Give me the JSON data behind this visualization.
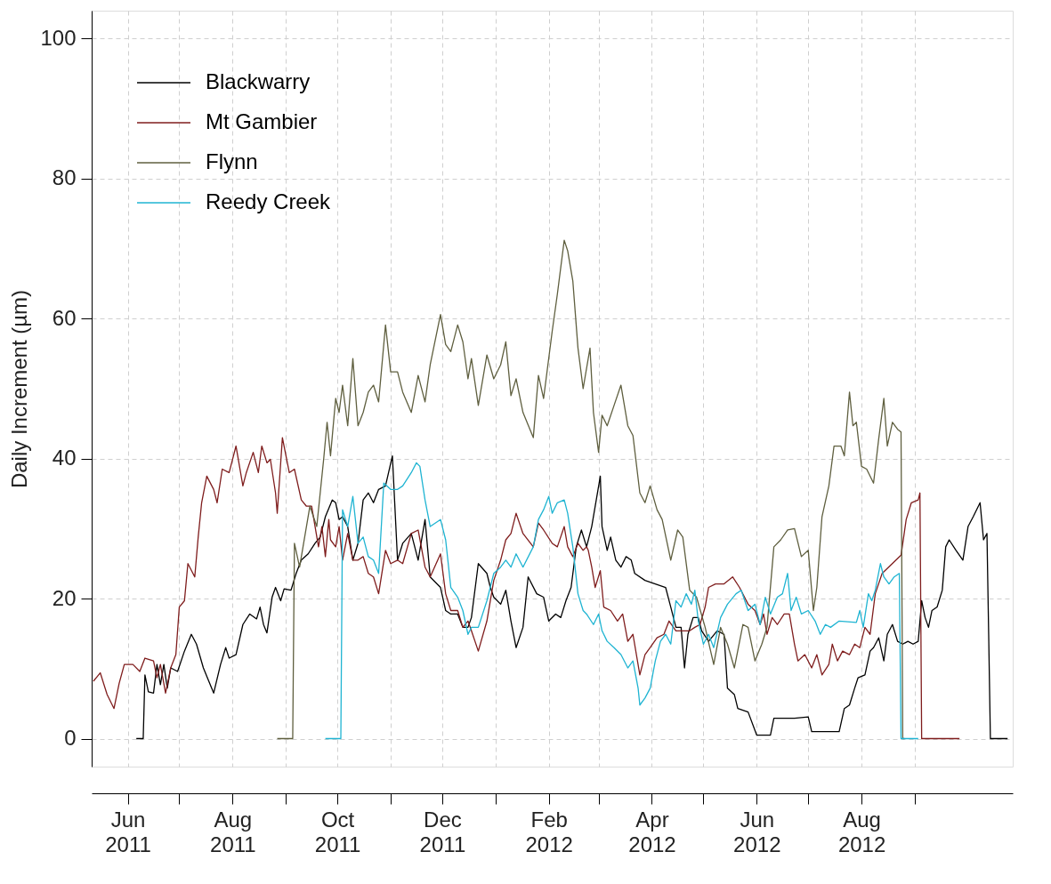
{
  "chart_data": {
    "type": "line",
    "ylabel": "Daily Increment (µm)",
    "xlim": [
      "2011-05-11",
      "2012-10-28"
    ],
    "ylim": [
      -4,
      104
    ],
    "yticks": [
      0,
      20,
      40,
      60,
      80,
      100
    ],
    "xticks": [
      {
        "value": "2011-06-01",
        "label": "Jun\n2011"
      },
      {
        "value": "2011-07-01",
        "label": null
      },
      {
        "value": "2011-08-01",
        "label": "Aug\n2011"
      },
      {
        "value": "2011-09-01",
        "label": null
      },
      {
        "value": "2011-10-01",
        "label": "Oct\n2011"
      },
      {
        "value": "2011-11-01",
        "label": null
      },
      {
        "value": "2011-12-01",
        "label": "Dec\n2011"
      },
      {
        "value": "2012-01-01",
        "label": null
      },
      {
        "value": "2012-02-01",
        "label": "Feb\n2012"
      },
      {
        "value": "2012-03-01",
        "label": null
      },
      {
        "value": "2012-04-01",
        "label": "Apr\n2012"
      },
      {
        "value": "2012-05-01",
        "label": null
      },
      {
        "value": "2012-06-01",
        "label": "Jun\n2012"
      },
      {
        "value": "2012-07-01",
        "label": null
      },
      {
        "value": "2012-08-01",
        "label": "Aug\n2012"
      },
      {
        "value": "2012-09-01",
        "label": null
      }
    ],
    "grid": true,
    "legend": "top left",
    "line_style": "solid",
    "series": [
      {
        "name": "Blackwarry",
        "color": "#000000",
        "x": [
          "2011-06-06",
          "2011-06-10",
          "2011-06-11",
          "2011-06-13",
          "2011-06-16",
          "2011-06-18",
          "2011-06-20",
          "2011-06-22",
          "2011-06-24",
          "2011-06-26",
          "2011-06-30",
          "2011-07-04",
          "2011-07-08",
          "2011-07-11",
          "2011-07-15",
          "2011-07-21",
          "2011-07-25",
          "2011-07-28",
          "2011-07-30",
          "2011-08-03",
          "2011-08-07",
          "2011-08-11",
          "2011-08-15",
          "2011-08-17",
          "2011-08-19",
          "2011-08-21",
          "2011-08-24",
          "2011-08-26",
          "2011-08-29",
          "2011-08-31",
          "2011-09-04",
          "2011-09-07",
          "2011-09-10",
          "2011-09-14",
          "2011-09-18",
          "2011-09-21",
          "2011-09-24",
          "2011-09-28",
          "2011-09-30",
          "2011-10-02",
          "2011-10-04",
          "2011-10-07",
          "2011-10-10",
          "2011-10-13",
          "2011-10-16",
          "2011-10-19",
          "2011-10-22",
          "2011-10-25",
          "2011-10-29",
          "2011-11-02",
          "2011-11-05",
          "2011-11-08",
          "2011-11-13",
          "2011-11-17",
          "2011-11-21",
          "2011-11-24",
          "2011-11-30",
          "2011-12-03",
          "2011-12-06",
          "2011-12-10",
          "2011-12-13",
          "2011-12-16",
          "2011-12-18",
          "2011-12-22",
          "2011-12-27",
          "2011-12-29",
          "2011-12-31",
          "2012-01-04",
          "2012-01-07",
          "2012-01-10",
          "2012-01-13",
          "2012-01-17",
          "2012-01-20",
          "2012-01-25",
          "2012-01-29",
          "2012-02-01",
          "2012-02-05",
          "2012-02-08",
          "2012-02-11",
          "2012-02-14",
          "2012-02-17",
          "2012-02-20",
          "2012-02-23",
          "2012-02-26",
          "2012-03-02",
          "2012-03-03",
          "2012-03-06",
          "2012-03-08",
          "2012-03-11",
          "2012-03-14",
          "2012-03-17",
          "2012-03-20",
          "2012-03-22",
          "2012-03-28",
          "2012-04-03",
          "2012-04-09",
          "2012-04-12",
          "2012-04-15",
          "2012-04-18",
          "2012-04-20",
          "2012-04-22",
          "2012-04-25",
          "2012-04-28",
          "2012-04-30",
          "2012-05-04",
          "2012-05-09",
          "2012-05-13",
          "2012-05-15",
          "2012-05-19",
          "2012-05-21",
          "2012-05-27",
          "2012-06-01",
          "2012-06-09",
          "2012-06-11",
          "2012-06-23",
          "2012-07-01",
          "2012-07-03",
          "2012-07-14",
          "2012-07-19",
          "2012-07-22",
          "2012-07-25",
          "2012-07-28",
          "2012-07-30",
          "2012-08-03",
          "2012-08-06",
          "2012-08-08",
          "2012-08-11",
          "2012-08-14",
          "2012-08-16",
          "2012-08-19",
          "2012-08-22",
          "2012-08-25",
          "2012-08-28",
          "2012-08-31",
          "2012-09-03",
          "2012-09-05",
          "2012-09-07",
          "2012-09-09",
          "2012-09-11",
          "2012-09-14",
          "2012-09-17",
          "2012-09-19",
          "2012-09-21",
          "2012-09-25",
          "2012-09-29",
          "2012-10-02",
          "2012-10-05",
          "2012-10-09",
          "2012-10-11",
          "2012-10-13",
          "2012-10-14",
          "2012-10-15",
          "2012-10-25"
        ],
        "values": [
          0,
          0,
          9.1,
          6.7,
          6.5,
          10.6,
          7.7,
          10.6,
          7.2,
          10.1,
          9.6,
          12.5,
          14.9,
          13.5,
          10.1,
          6.5,
          10.6,
          13,
          11.5,
          12,
          16.3,
          17.8,
          17.1,
          18.8,
          16.3,
          15.1,
          20.2,
          21.6,
          19.7,
          21.4,
          21.2,
          23.6,
          25.5,
          26.4,
          27.9,
          28.8,
          31.7,
          34.1,
          33.7,
          31.3,
          31.7,
          30.3,
          25.5,
          27.9,
          34.1,
          35.1,
          33.7,
          35.6,
          36.1,
          40.4,
          25.5,
          27.9,
          29.3,
          25.5,
          31.3,
          23.1,
          21.6,
          18.3,
          17.8,
          17.8,
          15.9,
          15.9,
          17.3,
          25,
          23.6,
          21.6,
          20.2,
          19.2,
          21.2,
          16.8,
          13,
          15.9,
          23.1,
          20.7,
          20.2,
          16.8,
          17.8,
          17.3,
          19.7,
          21.6,
          27.4,
          29.8,
          27.4,
          30.3,
          37.5,
          30.3,
          26.9,
          28.8,
          25.5,
          24.5,
          26,
          25.5,
          23.6,
          22.6,
          22.1,
          21.6,
          18.8,
          15.9,
          15.9,
          10.1,
          14.9,
          17.3,
          17.3,
          15.4,
          13.9,
          15.4,
          14.9,
          7.2,
          6.3,
          4.3,
          3.8,
          0.5,
          0.5,
          2.9,
          2.9,
          3.1,
          1,
          1,
          1,
          4.3,
          4.8,
          7.2,
          8.7,
          9.1,
          12.5,
          13,
          14.4,
          11.1,
          14.9,
          16.3,
          13.9,
          13.5,
          13.9,
          13.5,
          13.9,
          19.7,
          17.3,
          15.9,
          18.3,
          18.8,
          21.2,
          27.4,
          28.4,
          26.9,
          25.5,
          30.3,
          31.7,
          33.7,
          28.4,
          29.3,
          14.9,
          0,
          0
        ]
      },
      {
        "name": "Mt Gambier",
        "color": "#7f1d1d",
        "x": [
          "2011-05-12",
          "2011-05-16",
          "2011-05-20",
          "2011-05-24",
          "2011-05-27",
          "2011-05-30",
          "2011-06-04",
          "2011-06-08",
          "2011-06-11",
          "2011-06-16",
          "2011-06-18",
          "2011-06-20",
          "2011-06-23",
          "2011-06-26",
          "2011-06-29",
          "2011-07-01",
          "2011-07-04",
          "2011-07-06",
          "2011-07-10",
          "2011-07-12",
          "2011-07-14",
          "2011-07-17",
          "2011-07-21",
          "2011-07-23",
          "2011-07-26",
          "2011-07-30",
          "2011-08-03",
          "2011-08-07",
          "2011-08-09",
          "2011-08-13",
          "2011-08-16",
          "2011-08-18",
          "2011-08-21",
          "2011-08-23",
          "2011-08-26",
          "2011-08-27",
          "2011-08-30",
          "2011-09-03",
          "2011-09-06",
          "2011-09-10",
          "2011-09-13",
          "2011-09-16",
          "2011-09-20",
          "2011-09-22",
          "2011-09-24",
          "2011-09-26",
          "2011-09-27",
          "2011-09-30",
          "2011-10-02",
          "2011-10-04",
          "2011-10-07",
          "2011-10-10",
          "2011-10-13",
          "2011-10-16",
          "2011-10-19",
          "2011-10-22",
          "2011-10-25",
          "2011-10-29",
          "2011-11-01",
          "2011-11-05",
          "2011-11-08",
          "2011-11-13",
          "2011-11-17",
          "2011-11-21",
          "2011-11-24",
          "2011-11-30",
          "2011-12-03",
          "2011-12-06",
          "2011-12-10",
          "2011-12-13",
          "2011-12-16",
          "2011-12-18",
          "2011-12-22",
          "2011-12-27",
          "2011-12-31",
          "2012-01-04",
          "2012-01-07",
          "2012-01-10",
          "2012-01-13",
          "2012-01-17",
          "2012-01-23",
          "2012-01-26",
          "2012-01-29",
          "2012-02-03",
          "2012-02-06",
          "2012-02-10",
          "2012-02-12",
          "2012-02-15",
          "2012-02-18",
          "2012-02-21",
          "2012-02-23",
          "2012-02-24",
          "2012-02-26",
          "2012-02-28",
          "2012-03-02",
          "2012-03-04",
          "2012-03-08",
          "2012-03-12",
          "2012-03-15",
          "2012-03-18",
          "2012-03-21",
          "2012-03-25",
          "2012-03-28",
          "2012-03-31",
          "2012-04-04",
          "2012-04-08",
          "2012-04-11",
          "2012-04-15",
          "2012-04-23",
          "2012-04-26",
          "2012-04-29",
          "2012-05-02",
          "2012-05-04",
          "2012-05-08",
          "2012-05-13",
          "2012-05-18",
          "2012-05-22",
          "2012-05-27",
          "2012-05-31",
          "2012-06-03",
          "2012-06-05",
          "2012-06-07",
          "2012-06-10",
          "2012-06-13",
          "2012-06-17",
          "2012-06-20",
          "2012-06-23",
          "2012-06-25",
          "2012-06-29",
          "2012-07-03",
          "2012-07-06",
          "2012-07-09",
          "2012-07-13",
          "2012-07-15",
          "2012-07-18",
          "2012-07-21",
          "2012-07-25",
          "2012-07-28",
          "2012-07-31",
          "2012-08-03",
          "2012-08-06",
          "2012-08-09",
          "2012-08-13",
          "2012-08-24",
          "2012-08-27",
          "2012-08-30",
          "2012-09-03",
          "2012-09-04",
          "2012-09-05",
          "2012-09-27"
        ],
        "values": [
          8.2,
          9.4,
          6.3,
          4.3,
          7.9,
          10.6,
          10.6,
          9.6,
          11.5,
          11.1,
          8.7,
          10.6,
          6.5,
          10.1,
          12,
          18.8,
          19.7,
          25,
          23.1,
          28.8,
          33.7,
          37.5,
          35.6,
          33.7,
          38.5,
          38,
          41.8,
          36.1,
          38,
          40.9,
          38,
          41.8,
          39.4,
          39.9,
          35.1,
          32.2,
          43,
          38,
          38.5,
          34.1,
          33.2,
          33.2,
          27.4,
          30.3,
          26,
          31.3,
          28.4,
          27.4,
          30.3,
          25.5,
          29.3,
          25.5,
          25.5,
          26,
          23.6,
          23.1,
          20.7,
          26.9,
          25,
          25.5,
          25,
          29.3,
          29.8,
          24.5,
          23.1,
          26.4,
          20.7,
          18.3,
          18.3,
          15.9,
          16.8,
          15.4,
          12.5,
          16.8,
          22.6,
          25.5,
          28.4,
          29.3,
          32.2,
          29.3,
          27.4,
          30.8,
          29.8,
          27.9,
          27.4,
          30.3,
          27.4,
          26,
          27.9,
          26.9,
          27.4,
          26.9,
          24.5,
          21.6,
          24,
          18.8,
          18.3,
          16.8,
          17.8,
          13.9,
          14.9,
          9.1,
          12,
          13,
          14.4,
          14.9,
          16.8,
          15.4,
          15.4,
          15.9,
          16.3,
          18.8,
          21.6,
          22.1,
          22.1,
          23.1,
          21.6,
          19.2,
          18.3,
          16.3,
          17.8,
          14.9,
          17.3,
          16.3,
          17.8,
          17.8,
          13.5,
          11.1,
          12,
          10.1,
          12,
          9.1,
          10.6,
          13.5,
          11.1,
          12.5,
          12,
          13.5,
          13,
          15.9,
          14.9,
          20.7,
          23.6,
          26.2,
          31.3,
          33.7,
          34.1,
          35.1,
          0,
          0
        ]
      },
      {
        "name": "Flynn",
        "color": "#5f5f3f",
        "x": [
          "2011-08-27",
          "2011-09-05",
          "2011-09-06",
          "2011-09-09",
          "2011-09-11",
          "2011-09-15",
          "2011-09-19",
          "2011-09-23",
          "2011-09-25",
          "2011-09-27",
          "2011-09-30",
          "2011-10-02",
          "2011-10-04",
          "2011-10-07",
          "2011-10-10",
          "2011-10-13",
          "2011-10-16",
          "2011-10-19",
          "2011-10-22",
          "2011-10-25",
          "2011-10-29",
          "2011-11-01",
          "2011-11-05",
          "2011-11-08",
          "2011-11-13",
          "2011-11-17",
          "2011-11-21",
          "2011-11-24",
          "2011-11-30",
          "2011-12-03",
          "2011-12-06",
          "2011-12-10",
          "2011-12-13",
          "2011-12-16",
          "2011-12-18",
          "2011-12-22",
          "2011-12-27",
          "2011-12-31",
          "2012-01-04",
          "2012-01-07",
          "2012-01-10",
          "2012-01-13",
          "2012-01-17",
          "2012-01-23",
          "2012-01-26",
          "2012-01-29",
          "2012-02-03",
          "2012-02-06",
          "2012-02-10",
          "2012-02-12",
          "2012-02-15",
          "2012-02-18",
          "2012-02-21",
          "2012-02-25",
          "2012-02-27",
          "2012-03-01",
          "2012-03-03",
          "2012-03-06",
          "2012-03-10",
          "2012-03-14",
          "2012-03-18",
          "2012-03-21",
          "2012-03-25",
          "2012-03-28",
          "2012-03-31",
          "2012-04-04",
          "2012-04-07",
          "2012-04-12",
          "2012-04-16",
          "2012-04-19",
          "2012-04-23",
          "2012-04-27",
          "2012-05-02",
          "2012-05-07",
          "2012-05-11",
          "2012-05-15",
          "2012-05-19",
          "2012-05-24",
          "2012-05-27",
          "2012-05-31",
          "2012-06-04",
          "2012-06-07",
          "2012-06-11",
          "2012-06-15",
          "2012-06-19",
          "2012-06-23",
          "2012-06-27",
          "2012-07-01",
          "2012-07-04",
          "2012-07-06",
          "2012-07-09",
          "2012-07-13",
          "2012-07-16",
          "2012-07-20",
          "2012-07-22",
          "2012-07-25",
          "2012-07-27",
          "2012-07-29",
          "2012-08-01",
          "2012-08-04",
          "2012-08-08",
          "2012-08-11",
          "2012-08-14",
          "2012-08-16",
          "2012-08-19",
          "2012-08-22",
          "2012-08-24",
          "2012-08-25",
          "2012-08-26"
        ],
        "values": [
          0,
          0,
          27.9,
          24.5,
          27.4,
          33.2,
          30.3,
          39.9,
          45.2,
          40.4,
          48.6,
          46.6,
          50.5,
          44.7,
          54.3,
          44.7,
          46.6,
          49.5,
          50.5,
          48.1,
          59.1,
          52.4,
          52.4,
          49.5,
          46.6,
          51.9,
          48.1,
          53.4,
          60.6,
          56.3,
          55.3,
          59.1,
          56.7,
          51.4,
          54.3,
          47.6,
          54.8,
          51.4,
          53.4,
          56.7,
          49,
          51.4,
          46.6,
          43,
          51.9,
          48.6,
          58.2,
          63.5,
          71.2,
          69.7,
          65.4,
          55.8,
          50,
          55.8,
          46.6,
          40.9,
          46.2,
          44.7,
          47.6,
          50.5,
          44.7,
          43.3,
          35.1,
          33.7,
          36.1,
          32.7,
          31.3,
          25.5,
          29.8,
          28.8,
          21.2,
          20.2,
          15.9,
          10.6,
          15.9,
          13.5,
          10.1,
          16.3,
          15.9,
          11.1,
          13.5,
          15.9,
          27.4,
          28.4,
          29.8,
          30,
          26,
          26.9,
          18.3,
          21.6,
          31.7,
          36.1,
          41.8,
          41.8,
          40.4,
          49.5,
          44.7,
          45.2,
          38.9,
          38.5,
          36.5,
          42.8,
          48.6,
          41.8,
          45.2,
          44.2,
          43.8,
          0,
          0
        ]
      },
      {
        "name": "Reedy Creek",
        "color": "#1fb4d2",
        "x": [
          "2011-09-24",
          "2011-10-03",
          "2011-10-04",
          "2011-10-07",
          "2011-10-10",
          "2011-10-13",
          "2011-10-16",
          "2011-10-19",
          "2011-10-22",
          "2011-10-25",
          "2011-10-28",
          "2011-11-01",
          "2011-11-05",
          "2011-11-08",
          "2011-11-13",
          "2011-11-16",
          "2011-11-18",
          "2011-11-21",
          "2011-11-24",
          "2011-11-30",
          "2011-12-03",
          "2011-12-06",
          "2011-12-10",
          "2011-12-13",
          "2011-12-16",
          "2011-12-18",
          "2011-12-22",
          "2011-12-27",
          "2011-12-31",
          "2012-01-04",
          "2012-01-07",
          "2012-01-10",
          "2012-01-13",
          "2012-01-17",
          "2012-01-23",
          "2012-01-26",
          "2012-01-29",
          "2012-02-01",
          "2012-02-03",
          "2012-02-06",
          "2012-02-10",
          "2012-02-12",
          "2012-02-15",
          "2012-02-18",
          "2012-02-21",
          "2012-02-23",
          "2012-02-27",
          "2012-03-01",
          "2012-03-03",
          "2012-03-06",
          "2012-03-10",
          "2012-03-14",
          "2012-03-18",
          "2012-03-21",
          "2012-03-24",
          "2012-03-25",
          "2012-03-28",
          "2012-03-31",
          "2012-04-03",
          "2012-04-06",
          "2012-04-09",
          "2012-04-12",
          "2012-04-15",
          "2012-04-18",
          "2012-04-21",
          "2012-04-24",
          "2012-04-26",
          "2012-04-28",
          "2012-05-01",
          "2012-05-04",
          "2012-05-07",
          "2012-05-11",
          "2012-05-15",
          "2012-05-20",
          "2012-05-23",
          "2012-05-27",
          "2012-05-31",
          "2012-06-03",
          "2012-06-06",
          "2012-06-09",
          "2012-06-13",
          "2012-06-16",
          "2012-06-19",
          "2012-06-21",
          "2012-06-24",
          "2012-06-27",
          "2012-07-01",
          "2012-07-05",
          "2012-07-08",
          "2012-07-11",
          "2012-07-14",
          "2012-07-19",
          "2012-07-29",
          "2012-07-31",
          "2012-08-02",
          "2012-08-05",
          "2012-08-07",
          "2012-08-09",
          "2012-08-12",
          "2012-08-14",
          "2012-08-17",
          "2012-08-20",
          "2012-08-23",
          "2012-08-24",
          "2012-09-03"
        ],
        "values": [
          0,
          0,
          32.7,
          30.3,
          34.6,
          27.9,
          28.8,
          26,
          25.5,
          23.6,
          36.5,
          35.6,
          35.6,
          36.1,
          38,
          39.4,
          38.9,
          34.1,
          30.3,
          31.3,
          28.4,
          21.6,
          20.2,
          18.3,
          14.9,
          15.9,
          15.9,
          19.7,
          23.6,
          24.5,
          25.5,
          24.5,
          26.4,
          24.5,
          27.4,
          31.3,
          32.7,
          34.6,
          32.2,
          33.7,
          34.1,
          32.2,
          27.4,
          20.7,
          18.3,
          17.8,
          16.3,
          17.8,
          15.4,
          13.9,
          13,
          12,
          10.1,
          11.1,
          7.2,
          4.8,
          5.8,
          7.2,
          11.1,
          13.9,
          14.9,
          13.5,
          19.7,
          18.8,
          20.7,
          19.2,
          21.2,
          16.8,
          13.5,
          14.9,
          13,
          17.3,
          19.2,
          20.7,
          21.2,
          18.3,
          19.2,
          16.3,
          20.2,
          17.8,
          20.2,
          20.7,
          23.6,
          18.3,
          20.2,
          17.8,
          18.3,
          16.8,
          14.9,
          16.3,
          15.9,
          16.8,
          16.6,
          18.3,
          15.9,
          20.7,
          19.7,
          21.2,
          25,
          23.1,
          22.1,
          23.1,
          23.6,
          0,
          0
        ]
      }
    ]
  }
}
